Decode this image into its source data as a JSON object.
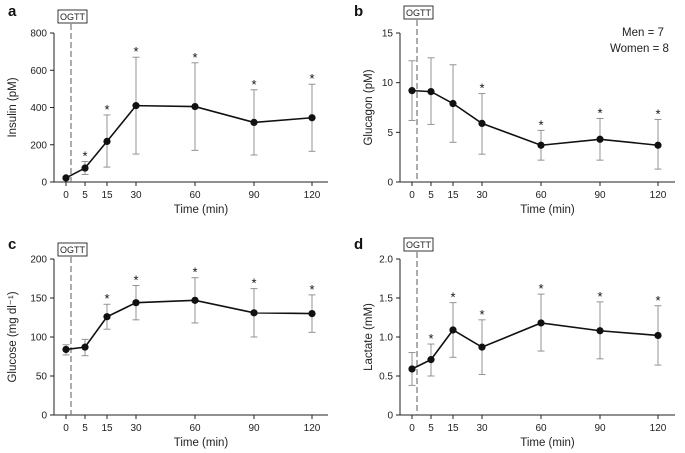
{
  "note": {
    "men": "Men = 7",
    "women": "Women = 8"
  },
  "chart_data": [
    {
      "panel": "a",
      "type": "line",
      "ogtt": "OGTT",
      "xlabel": "Time (min)",
      "ylabel": "Insulin (pM)",
      "x": [
        0,
        5,
        15,
        30,
        60,
        90,
        120
      ],
      "values": [
        22,
        75,
        218,
        410,
        405,
        320,
        345
      ],
      "err_low": [
        15,
        40,
        80,
        150,
        170,
        145,
        165
      ],
      "err_high": [
        30,
        110,
        360,
        670,
        640,
        495,
        525
      ],
      "significant": [
        false,
        true,
        true,
        true,
        true,
        true,
        true
      ],
      "yticks": [
        0,
        200,
        400,
        600,
        800
      ],
      "ylim": [
        0,
        800
      ]
    },
    {
      "panel": "b",
      "type": "line",
      "ogtt": "OGTT",
      "xlabel": "Time (min)",
      "ylabel": "Glucagon (pM)",
      "x": [
        0,
        5,
        15,
        30,
        60,
        90,
        120
      ],
      "values": [
        9.2,
        9.1,
        7.9,
        5.9,
        3.7,
        4.3,
        3.7
      ],
      "err_low": [
        6.2,
        5.8,
        4.0,
        2.8,
        2.2,
        2.2,
        1.3
      ],
      "err_high": [
        12.2,
        12.5,
        11.8,
        8.9,
        5.2,
        6.4,
        6.3
      ],
      "significant": [
        false,
        false,
        false,
        true,
        true,
        true,
        true
      ],
      "yticks": [
        0,
        5,
        10,
        15
      ],
      "ylim": [
        0,
        15
      ]
    },
    {
      "panel": "c",
      "type": "line",
      "ogtt": "OGTT",
      "xlabel": "Time (min)",
      "ylabel": "Glucose (mg dl⁻¹)",
      "x": [
        0,
        5,
        15,
        30,
        60,
        90,
        120
      ],
      "values": [
        84,
        87,
        126,
        144,
        147,
        131,
        130
      ],
      "err_low": [
        77,
        76,
        110,
        122,
        118,
        100,
        106
      ],
      "err_high": [
        90,
        97,
        142,
        166,
        176,
        162,
        154
      ],
      "significant": [
        false,
        false,
        true,
        true,
        true,
        true,
        true
      ],
      "yticks": [
        0,
        50,
        100,
        150,
        200
      ],
      "ylim": [
        0,
        200
      ]
    },
    {
      "panel": "d",
      "type": "line",
      "ogtt": "OGTT",
      "xlabel": "Time (min)",
      "ylabel": "Lactate (mM)",
      "x": [
        0,
        5,
        15,
        30,
        60,
        90,
        120
      ],
      "values": [
        0.59,
        0.71,
        1.09,
        0.87,
        1.18,
        1.08,
        1.02
      ],
      "err_low": [
        0.38,
        0.5,
        0.74,
        0.52,
        0.82,
        0.72,
        0.64
      ],
      "err_high": [
        0.8,
        0.91,
        1.44,
        1.22,
        1.55,
        1.45,
        1.4
      ],
      "significant": [
        false,
        true,
        true,
        true,
        true,
        true,
        true
      ],
      "yticks": [
        0,
        0.5,
        1.0,
        1.5,
        2.0
      ],
      "yticklabels": [
        "0",
        "0.5",
        "1.0",
        "1.5",
        "2.0"
      ],
      "ylim": [
        0,
        2
      ]
    }
  ]
}
